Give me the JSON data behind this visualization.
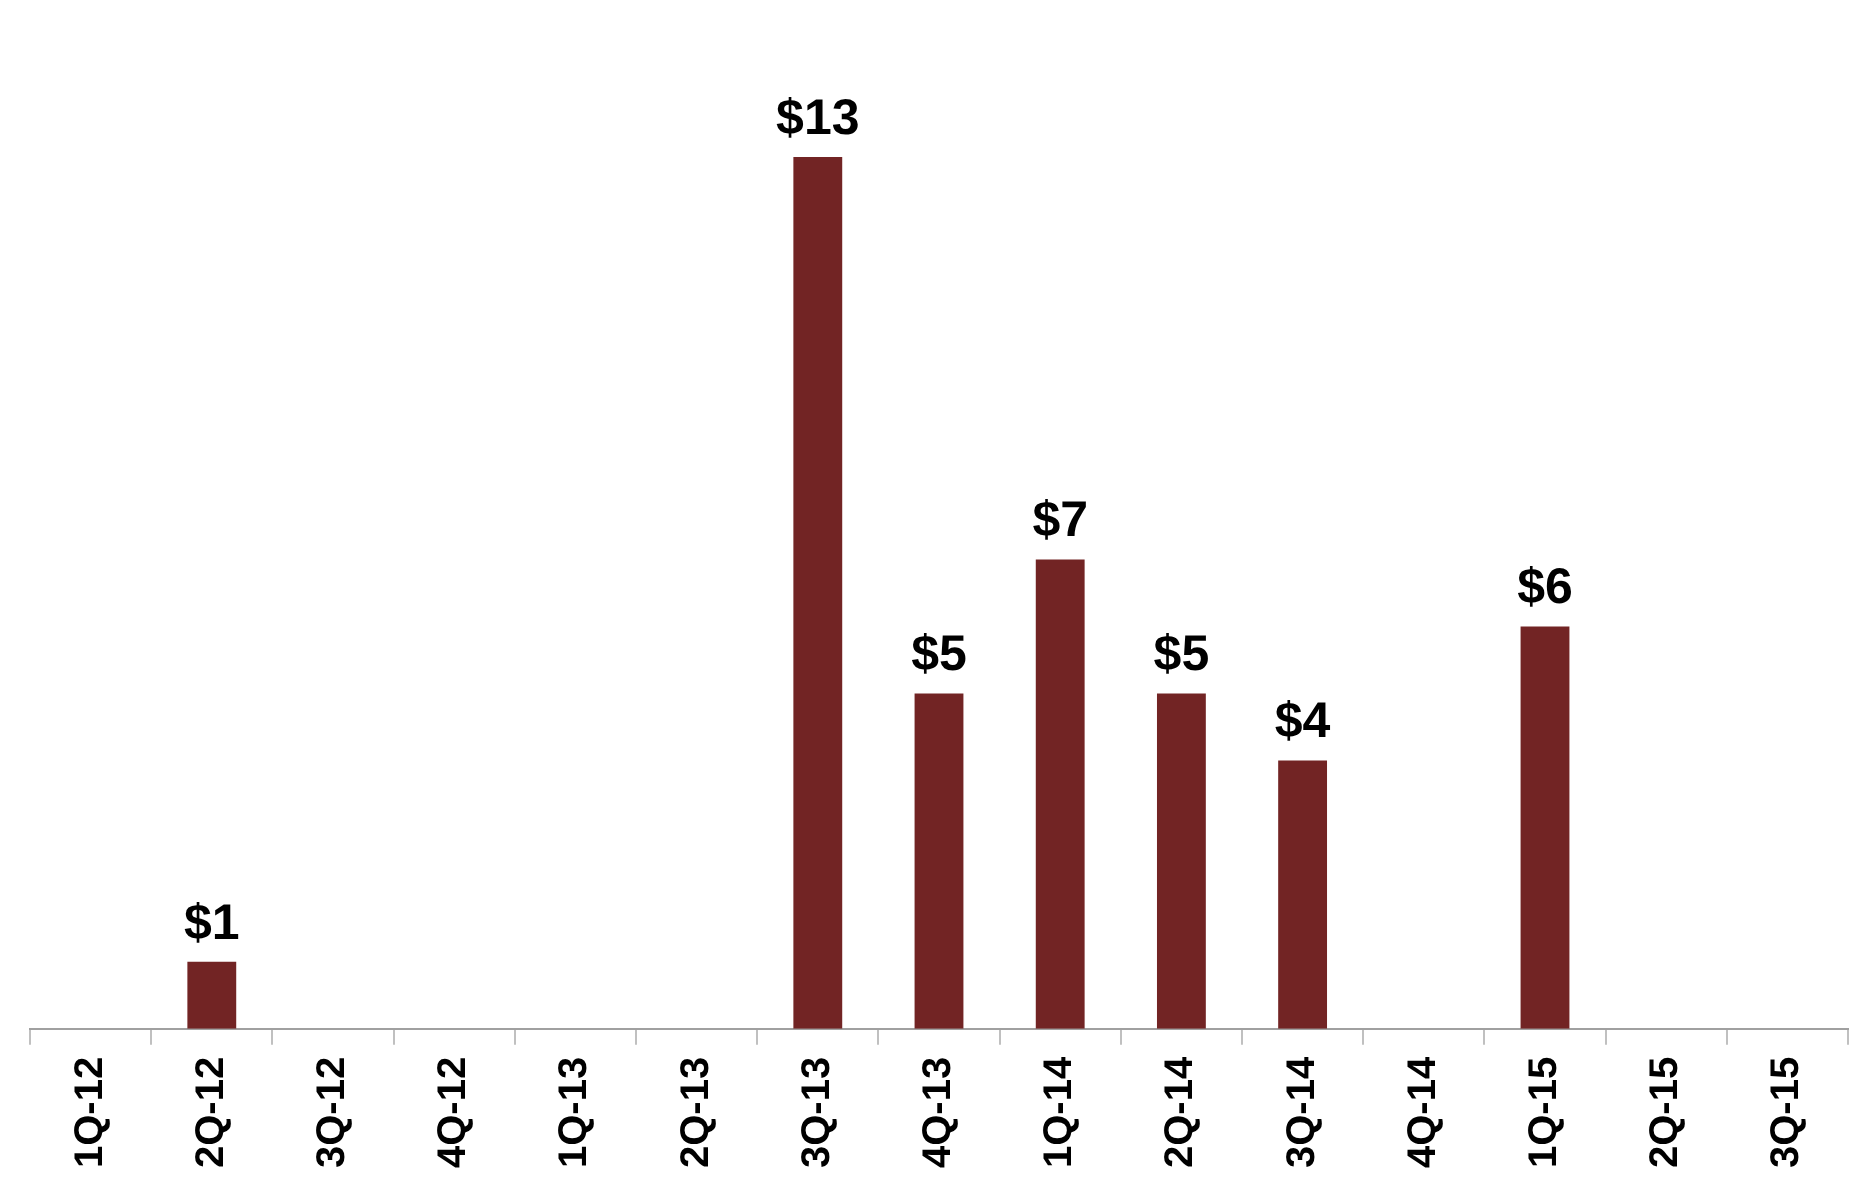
{
  "chart_data": {
    "type": "bar",
    "categories": [
      "1Q-12",
      "2Q-12",
      "3Q-12",
      "4Q-12",
      "1Q-13",
      "2Q-13",
      "3Q-13",
      "4Q-13",
      "1Q-14",
      "2Q-14",
      "3Q-14",
      "4Q-14",
      "1Q-15",
      "2Q-15",
      "3Q-15"
    ],
    "values": [
      null,
      1,
      null,
      null,
      null,
      null,
      13,
      5,
      7,
      5,
      4,
      null,
      6,
      null,
      null
    ],
    "value_labels": [
      null,
      "$1",
      null,
      null,
      null,
      null,
      "$13",
      "$5",
      "$7",
      "$5",
      "$4",
      null,
      "$6",
      null,
      null
    ],
    "color": "#722424"
  }
}
